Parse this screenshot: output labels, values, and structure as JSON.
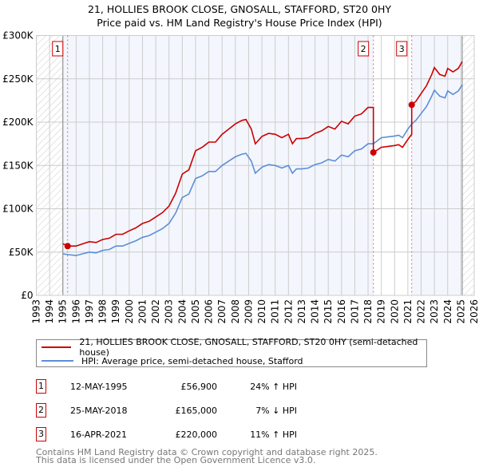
{
  "chart_data": {
    "type": "line",
    "title": "21, HOLLIES BROOK CLOSE, GNOSALL, STAFFORD, ST20 0HY",
    "subtitle": "Price paid vs. HM Land Registry's House Price Index (HPI)",
    "xlim": [
      1993,
      2026
    ],
    "ylim": [
      0,
      300000
    ],
    "yticks": [
      0,
      50000,
      100000,
      150000,
      200000,
      250000,
      300000
    ],
    "ytick_labels": [
      "£0",
      "£50K",
      "£100K",
      "£150K",
      "£200K",
      "£250K",
      "£300K"
    ],
    "xticks": [
      1993,
      1994,
      1995,
      1996,
      1997,
      1998,
      1999,
      2000,
      2001,
      2002,
      2003,
      2004,
      2005,
      2006,
      2007,
      2008,
      2009,
      2010,
      2011,
      2012,
      2013,
      2014,
      2015,
      2016,
      2017,
      2018,
      2019,
      2020,
      2021,
      2022,
      2023,
      2024,
      2025,
      2026
    ],
    "xtick_labels": [
      "1993",
      "1994",
      "1995",
      "1996",
      "1997",
      "1998",
      "1999",
      "2000",
      "2001",
      "2002",
      "2003",
      "2004",
      "2005",
      "2006",
      "2007",
      "2008",
      "2009",
      "2010",
      "2011",
      "2012",
      "2013",
      "2014",
      "2015",
      "2016",
      "2017",
      "2018",
      "2019",
      "2020",
      "2021",
      "2022",
      "2023",
      "2024",
      "2025",
      "2026"
    ],
    "grid": true,
    "hatched_ranges": [
      [
        1993,
        1995.0
      ],
      [
        2025.1,
        2026
      ]
    ],
    "series": [
      {
        "name": "21, HOLLIES BROOK CLOSE, GNOSALL, STAFFORD, ST20 0HY (semi-detached house)",
        "color": "#cc0000",
        "x": [
          1995.0,
          1995.4,
          1996,
          1996.5,
          1997,
          1997.5,
          1998,
          1998.5,
          1999,
          1999.5,
          2000,
          2000.5,
          2001,
          2001.5,
          2002,
          2002.5,
          2003,
          2003.5,
          2004,
          2004.5,
          2005,
          2005.5,
          2006,
          2006.5,
          2007,
          2007.5,
          2008,
          2008.5,
          2008.8,
          2009.2,
          2009.5,
          2010,
          2010.5,
          2011,
          2011.5,
          2012,
          2012.3,
          2012.6,
          2013,
          2013.5,
          2014,
          2014.5,
          2015,
          2015.5,
          2016,
          2016.5,
          2017,
          2017.5,
          2018,
          2018.4,
          2018.4,
          2019,
          2019.5,
          2020,
          2020.3,
          2020.6,
          2021,
          2021.29,
          2021.29,
          2021.6,
          2022,
          2022.4,
          2022.8,
          2023,
          2023.4,
          2023.8,
          2024,
          2024.4,
          2024.8,
          2025.1
        ],
        "values": [
          59500,
          57000,
          57000,
          59500,
          62000,
          61000,
          64500,
          66000,
          70500,
          70500,
          74500,
          78000,
          83000,
          85500,
          90500,
          95500,
          103000,
          118000,
          140000,
          145000,
          167000,
          171000,
          177000,
          177000,
          186000,
          192000,
          198000,
          202000,
          203000,
          192000,
          175000,
          183500,
          187000,
          186000,
          182000,
          186000,
          175000,
          181000,
          181000,
          182000,
          187000,
          190000,
          195000,
          192000,
          201000,
          198000,
          207000,
          209500,
          217000,
          217000,
          165000,
          171000,
          172000,
          173000,
          174000,
          171000,
          180000,
          186000,
          220000,
          224000,
          233000,
          242000,
          255000,
          263000,
          255000,
          253000,
          262000,
          258000,
          262000,
          270000
        ]
      },
      {
        "name": "HPI: Average price, semi-detached house, Stafford",
        "color": "#5b8fd6",
        "x": [
          1995.0,
          1995.4,
          1996,
          1996.5,
          1997,
          1997.5,
          1998,
          1998.5,
          1999,
          1999.5,
          2000,
          2000.5,
          2001,
          2001.5,
          2002,
          2002.5,
          2003,
          2003.5,
          2004,
          2004.5,
          2005,
          2005.5,
          2006,
          2006.5,
          2007,
          2007.5,
          2008,
          2008.5,
          2008.8,
          2009.2,
          2009.5,
          2010,
          2010.5,
          2011,
          2011.5,
          2012,
          2012.3,
          2012.6,
          2013,
          2013.5,
          2014,
          2014.5,
          2015,
          2015.5,
          2016,
          2016.5,
          2017,
          2017.5,
          2018,
          2018.4,
          2019,
          2019.5,
          2020,
          2020.3,
          2020.6,
          2021,
          2021.3,
          2021.6,
          2022,
          2022.4,
          2022.8,
          2023,
          2023.4,
          2023.8,
          2024,
          2024.4,
          2024.8,
          2025.1
        ],
        "values": [
          48000,
          47000,
          46000,
          48000,
          50000,
          49000,
          52000,
          53000,
          57000,
          57000,
          60000,
          63000,
          67000,
          69000,
          73000,
          77000,
          83000,
          95000,
          113000,
          117000,
          135000,
          138000,
          143000,
          143000,
          150000,
          155000,
          160000,
          163000,
          164000,
          155000,
          141000,
          148000,
          151000,
          150000,
          147000,
          150000,
          141000,
          146000,
          146000,
          147000,
          151000,
          153000,
          157000,
          155000,
          162000,
          160000,
          167000,
          169000,
          175000,
          175000,
          182000,
          183000,
          184000,
          185000,
          182000,
          192000,
          198000,
          202000,
          210000,
          218000,
          230000,
          237000,
          230000,
          228000,
          236000,
          232000,
          236000,
          243000
        ]
      }
    ],
    "sales": [
      {
        "label": "1",
        "x": 1995.36,
        "value": 56900
      },
      {
        "label": "2",
        "x": 2018.4,
        "value": 165000
      },
      {
        "label": "3",
        "x": 2021.29,
        "value": 220000
      }
    ]
  },
  "legend": {
    "property": "21, HOLLIES BROOK CLOSE, GNOSALL, STAFFORD, ST20 0HY (semi-detached house)",
    "hpi": "HPI: Average price, semi-detached house, Stafford"
  },
  "transactions": [
    {
      "num": "1",
      "date": "12-MAY-1995",
      "price": "£56,900",
      "hpi": "24% ↑ HPI"
    },
    {
      "num": "2",
      "date": "25-MAY-2018",
      "price": "£165,000",
      "hpi": "7% ↓ HPI"
    },
    {
      "num": "3",
      "date": "16-APR-2021",
      "price": "£220,000",
      "hpi": "11% ↑ HPI"
    }
  ],
  "footer": {
    "line1": "Contains HM Land Registry data © Crown copyright and database right 2025.",
    "line2": "This data is licensed under the Open Government Licence v3.0."
  }
}
